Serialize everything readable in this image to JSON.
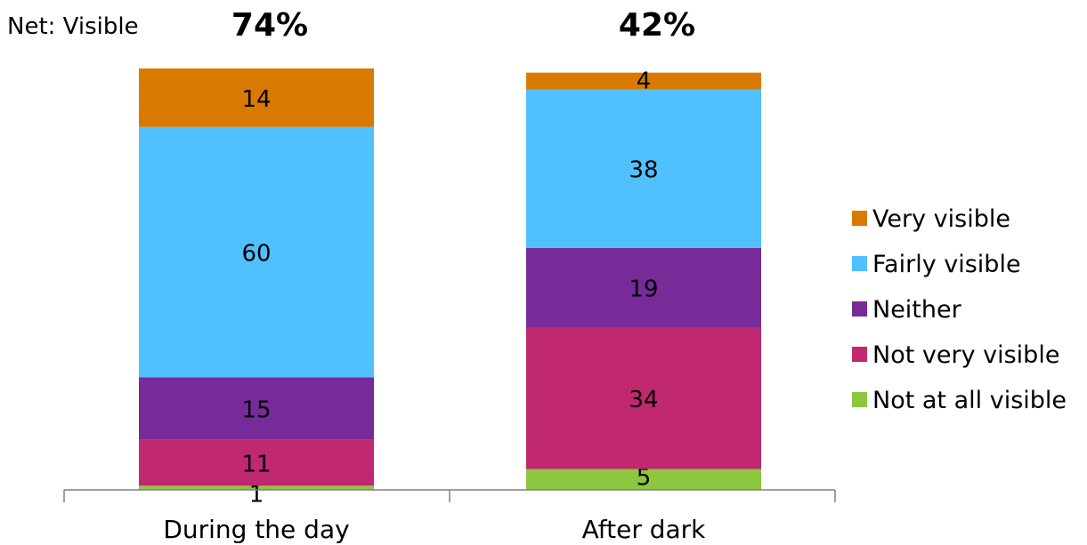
{
  "chart_data": {
    "type": "bar",
    "stacked": true,
    "net_label": "Net: Visible",
    "net_values": [
      "74%",
      "42%"
    ],
    "categories": [
      "During the day",
      "After dark"
    ],
    "series": [
      {
        "name": "Not at all visible",
        "values": [
          1,
          5
        ],
        "color": "#8dc63f"
      },
      {
        "name": "Not very visible",
        "values": [
          11,
          34
        ],
        "color": "#c0286f"
      },
      {
        "name": "Neither",
        "values": [
          15,
          19
        ],
        "color": "#772b98"
      },
      {
        "name": "Fairly visible",
        "values": [
          60,
          38
        ],
        "color": "#50c0ff"
      },
      {
        "name": "Very visible",
        "values": [
          14,
          4
        ],
        "color": "#d87a00"
      }
    ],
    "legend_order": [
      "Very visible",
      "Fairly visible",
      "Neither",
      "Not very visible",
      "Not at all visible"
    ],
    "legend_position": "right",
    "ylim": [
      0,
      101
    ],
    "grid": false
  }
}
